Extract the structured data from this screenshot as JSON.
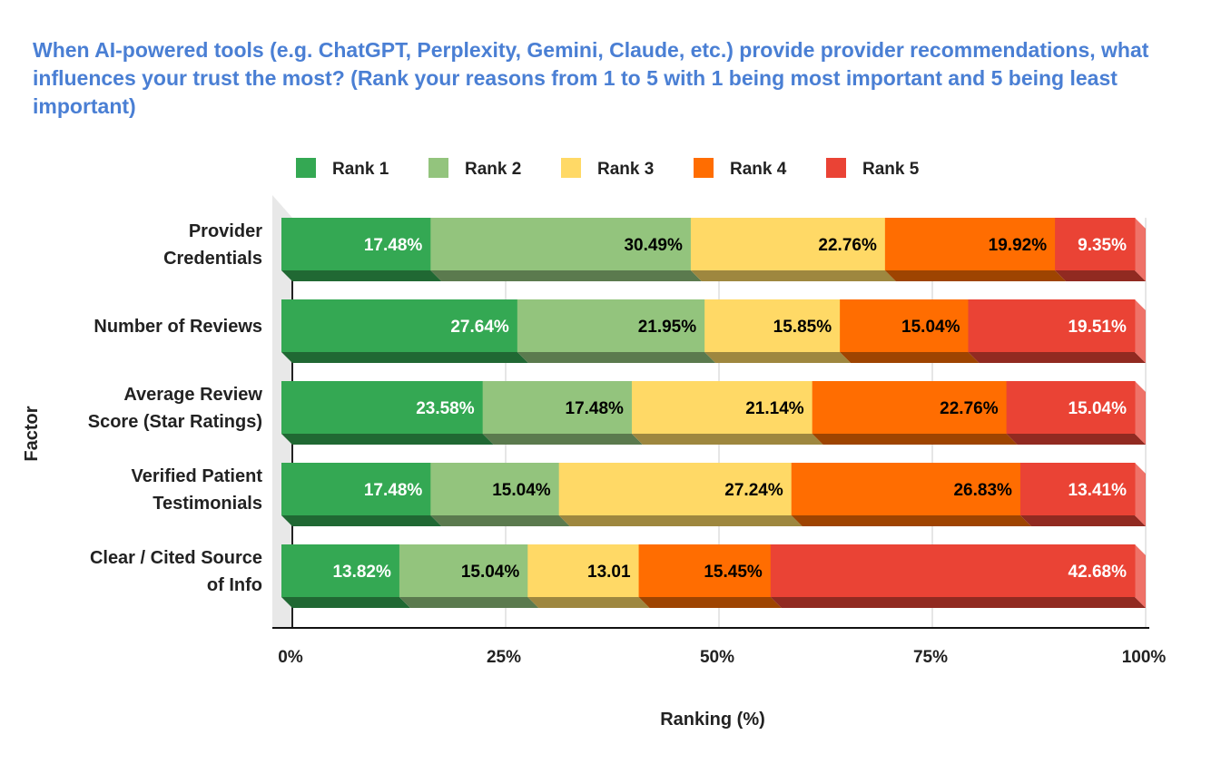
{
  "chart_data": {
    "type": "bar",
    "orientation": "horizontal",
    "stacked": "percent",
    "style": "3d",
    "title": "When AI-powered tools (e.g. ChatGPT, Perplexity, Gemini, Claude, etc.) provide provider recommendations, what influences your trust the most? (Rank your reasons from 1 to 5 with 1 being most important and 5 being least important)",
    "xlabel": "Ranking (%)",
    "ylabel": "Factor",
    "xlim": [
      0,
      100
    ],
    "xticks": [
      "0%",
      "25%",
      "50%",
      "75%",
      "100%"
    ],
    "legend_position": "top",
    "grid": true,
    "categories": [
      [
        "Provider",
        "Credentials"
      ],
      [
        "Number of Reviews"
      ],
      [
        "Average Review",
        "Score (Star Ratings)"
      ],
      [
        "Verified Patient",
        "Testimonials"
      ],
      [
        "Clear / Cited Source",
        "of Info"
      ]
    ],
    "series": [
      {
        "name": "Rank 1",
        "color": "#34a853",
        "label_color": "#ffffff",
        "values": [
          17.48,
          27.64,
          23.58,
          17.48,
          13.82
        ],
        "labels": [
          "17.48%",
          "27.64%",
          "23.58%",
          "17.48%",
          "13.82%"
        ]
      },
      {
        "name": "Rank 2",
        "color": "#93c47d",
        "label_color": "#000000",
        "values": [
          30.49,
          21.95,
          17.48,
          15.04,
          15.04
        ],
        "labels": [
          "30.49%",
          "21.95%",
          "17.48%",
          "15.04%",
          "15.04%"
        ]
      },
      {
        "name": "Rank 3",
        "color": "#ffd966",
        "label_color": "#000000",
        "values": [
          22.76,
          15.85,
          21.14,
          27.24,
          13.01
        ],
        "labels": [
          "22.76%",
          "15.85%",
          "21.14%",
          "27.24%",
          "13.01"
        ]
      },
      {
        "name": "Rank 4",
        "color": "#ff6d01",
        "label_color": "#000000",
        "values": [
          19.92,
          15.04,
          22.76,
          26.83,
          15.45
        ],
        "labels": [
          "19.92%",
          "15.04%",
          "22.76%",
          "26.83%",
          "15.45%"
        ]
      },
      {
        "name": "Rank 5",
        "color": "#ea4335",
        "label_color": "#ffffff",
        "values": [
          9.35,
          19.51,
          15.04,
          13.41,
          42.68
        ],
        "labels": [
          "9.35%",
          "19.51%",
          "15.04%",
          "13.41%",
          "42.68%"
        ]
      }
    ]
  }
}
